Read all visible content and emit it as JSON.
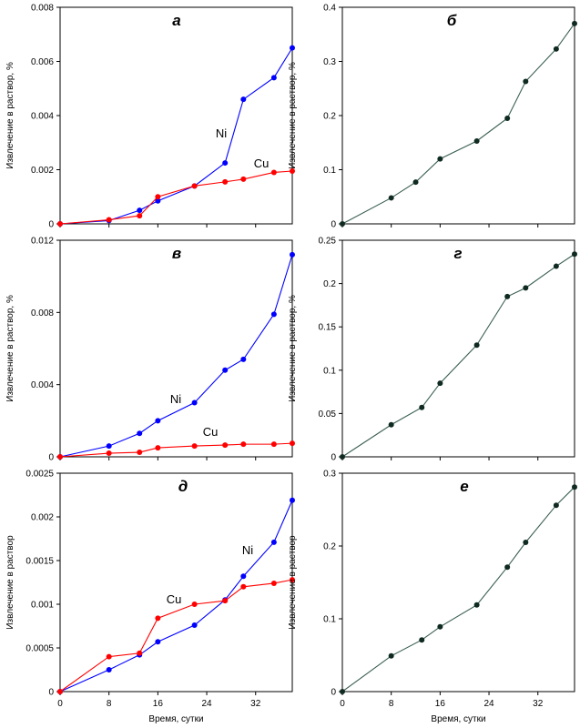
{
  "chart_data": [
    {
      "type": "line",
      "title": "а",
      "ylabel": "Извлечение в раствор, %",
      "xlabel": "",
      "xlim": [
        0,
        38
      ],
      "ylim": [
        0,
        0.008
      ],
      "xticks": [],
      "yticks": [
        "0",
        "0.002",
        "0.004",
        "0.006",
        "0.008"
      ],
      "yticks_val": [
        0,
        0.002,
        0.004,
        0.006,
        0.008
      ],
      "series": [
        {
          "name": "Ni",
          "color": "#0000ff",
          "x": [
            0,
            8,
            13,
            16,
            22,
            27,
            30,
            35,
            38
          ],
          "y": [
            0,
            0.00012,
            0.0005,
            0.00085,
            0.0014,
            0.00225,
            0.0046,
            0.0054,
            0.0065
          ]
        },
        {
          "name": "Cu",
          "color": "#ff0000",
          "x": [
            0,
            8,
            13,
            16,
            22,
            27,
            30,
            35,
            38
          ],
          "y": [
            0,
            0.00015,
            0.0003,
            0.001,
            0.0014,
            0.00155,
            0.00165,
            0.0019,
            0.00195
          ]
        }
      ]
    },
    {
      "type": "line",
      "title": "б",
      "ylabel": "Извлечение в раствор, %",
      "xlabel": "",
      "xlim": [
        0,
        38
      ],
      "ylim": [
        0,
        0.4
      ],
      "xticks": [],
      "yticks": [
        "0",
        "0.1",
        "0.2",
        "0.3",
        "0.4"
      ],
      "yticks_val": [
        0,
        0.1,
        0.2,
        0.3,
        0.4
      ],
      "series": [
        {
          "name": "",
          "color": "#3a5f50",
          "x": [
            0,
            8,
            12,
            16,
            22,
            27,
            30,
            35,
            38
          ],
          "y": [
            0,
            0.048,
            0.077,
            0.12,
            0.153,
            0.195,
            0.263,
            0.323,
            0.37
          ]
        }
      ]
    },
    {
      "type": "line",
      "title": "в",
      "ylabel": "Извлечение в раствор, %",
      "xlabel": "",
      "xlim": [
        0,
        38
      ],
      "ylim": [
        0,
        0.012
      ],
      "xticks": [],
      "yticks": [
        "0",
        "0.004",
        "0.008",
        "0.012"
      ],
      "yticks_val": [
        0,
        0.004,
        0.008,
        0.012
      ],
      "series": [
        {
          "name": "Ni",
          "color": "#0000ff",
          "x": [
            0,
            8,
            13,
            16,
            22,
            27,
            30,
            35,
            38
          ],
          "y": [
            0,
            0.0006,
            0.0013,
            0.002,
            0.003,
            0.0048,
            0.0054,
            0.0079,
            0.0112
          ]
        },
        {
          "name": "Cu",
          "color": "#ff0000",
          "x": [
            0,
            8,
            13,
            16,
            22,
            27,
            30,
            35,
            38
          ],
          "y": [
            0,
            0.0002,
            0.00025,
            0.0005,
            0.0006,
            0.00065,
            0.0007,
            0.0007,
            0.00075
          ]
        }
      ]
    },
    {
      "type": "line",
      "title": "г",
      "ylabel": "Извлечение в раствор, %",
      "xlabel": "",
      "xlim": [
        0,
        38
      ],
      "ylim": [
        0,
        0.25
      ],
      "xticks": [],
      "yticks": [
        "0",
        "0.05",
        "0.1",
        "0.15",
        "0.2",
        "0.25"
      ],
      "yticks_val": [
        0,
        0.05,
        0.1,
        0.15,
        0.2,
        0.25
      ],
      "series": [
        {
          "name": "",
          "color": "#3a5f50",
          "x": [
            0,
            8,
            13,
            16,
            22,
            27,
            30,
            35,
            38
          ],
          "y": [
            0,
            0.037,
            0.057,
            0.085,
            0.129,
            0.185,
            0.195,
            0.22,
            0.234
          ]
        }
      ]
    },
    {
      "type": "line",
      "title": "д",
      "ylabel": "Извлечение в раствор",
      "xlabel": "Время, сутки",
      "xlim": [
        0,
        38
      ],
      "ylim": [
        0,
        0.0025
      ],
      "xticks": [
        "0",
        "8",
        "16",
        "24",
        "32"
      ],
      "xticks_val": [
        0,
        8,
        16,
        24,
        32
      ],
      "yticks": [
        "0",
        "0.0005",
        "0.001",
        "0.0015",
        "0.002",
        "0.0025"
      ],
      "yticks_val": [
        0,
        0.0005,
        0.001,
        0.0015,
        0.002,
        0.0025
      ],
      "series": [
        {
          "name": "Ni",
          "color": "#0000ff",
          "x": [
            0,
            8,
            13,
            16,
            22,
            27,
            30,
            35,
            38
          ],
          "y": [
            0,
            0.00025,
            0.00042,
            0.00057,
            0.00076,
            0.00105,
            0.00132,
            0.00171,
            0.00219
          ]
        },
        {
          "name": "Cu",
          "color": "#ff0000",
          "x": [
            0,
            8,
            13,
            16,
            22,
            27,
            30,
            35,
            38
          ],
          "y": [
            0,
            0.0004,
            0.00044,
            0.00084,
            0.001,
            0.00104,
            0.0012,
            0.00124,
            0.00128
          ]
        }
      ]
    },
    {
      "type": "line",
      "title": "е",
      "ylabel": "Извлечение в раствор",
      "xlabel": "Время, сутки",
      "xlim": [
        0,
        38
      ],
      "ylim": [
        0,
        0.3
      ],
      "xticks": [
        "0",
        "8",
        "16",
        "24",
        "32"
      ],
      "xticks_val": [
        0,
        8,
        16,
        24,
        32
      ],
      "yticks": [
        "0",
        "0.1",
        "0.2",
        "0.3"
      ],
      "yticks_val": [
        0,
        0.1,
        0.2,
        0.3
      ],
      "series": [
        {
          "name": "",
          "color": "#3a5f50",
          "x": [
            0,
            8,
            13,
            16,
            22,
            27,
            30,
            35,
            38
          ],
          "y": [
            0,
            0.049,
            0.071,
            0.089,
            0.119,
            0.171,
            0.205,
            0.256,
            0.281
          ]
        }
      ]
    }
  ]
}
